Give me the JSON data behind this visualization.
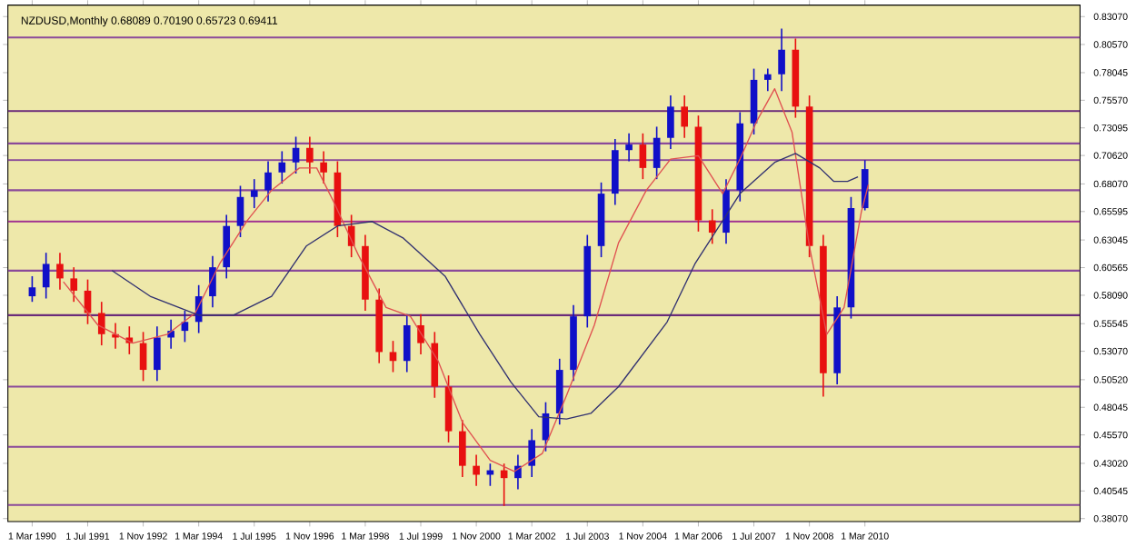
{
  "chart_data": {
    "type": "candlestick",
    "title": "NZDUSD,Monthly  0.68089 0.70190 0.65723 0.69411",
    "xlim": [
      "1989-08",
      "2015-05"
    ],
    "ylim": [
      0.378,
      0.841
    ],
    "xticks": [
      {
        "value": "1990-03-01",
        "label": "1 Mar 1990"
      },
      {
        "value": "1991-07-01",
        "label": "1 Jul 1991"
      },
      {
        "value": "1992-11-01",
        "label": "1 Nov 1992"
      },
      {
        "value": "1994-03-01",
        "label": "1 Mar 1994"
      },
      {
        "value": "1995-07-01",
        "label": "1 Jul 1995"
      },
      {
        "value": "1996-11-01",
        "label": "1 Nov 1996"
      },
      {
        "value": "1998-03-01",
        "label": "1 Mar 1998"
      },
      {
        "value": "1999-07-01",
        "label": "1 Jul 1999"
      },
      {
        "value": "2000-11-01",
        "label": "1 Nov 2000"
      },
      {
        "value": "2002-03-01",
        "label": "1 Mar 2002"
      },
      {
        "value": "2003-07-01",
        "label": "1 Jul 2003"
      },
      {
        "value": "2004-11-01",
        "label": "1 Nov 2004"
      },
      {
        "value": "2006-03-01",
        "label": "1 Mar 2006"
      },
      {
        "value": "2007-07-01",
        "label": "1 Jul 2007"
      },
      {
        "value": "2008-11-01",
        "label": "1 Nov 2008"
      },
      {
        "value": "2010-03-01",
        "label": "1 Mar 2010"
      }
    ],
    "yticks": [
      {
        "value": 0.3807,
        "label": "0.38070"
      },
      {
        "value": 0.40545,
        "label": "0.40545"
      },
      {
        "value": 0.4302,
        "label": "0.43020"
      },
      {
        "value": 0.4557,
        "label": "0.45570"
      },
      {
        "value": 0.48045,
        "label": "0.48045"
      },
      {
        "value": 0.5052,
        "label": "0.50520"
      },
      {
        "value": 0.5307,
        "label": "0.53070"
      },
      {
        "value": 0.55545,
        "label": "0.55545"
      },
      {
        "value": 0.5809,
        "label": "0.58090"
      },
      {
        "value": 0.60565,
        "label": "0.60565"
      },
      {
        "value": 0.63045,
        "label": "0.63045"
      },
      {
        "value": 0.65595,
        "label": "0.65595"
      },
      {
        "value": 0.6807,
        "label": "0.68070"
      },
      {
        "value": 0.7062,
        "label": "0.70620"
      },
      {
        "value": 0.73095,
        "label": "0.73095"
      },
      {
        "value": 0.7557,
        "label": "0.75570"
      },
      {
        "value": 0.78045,
        "label": "0.78045"
      },
      {
        "value": 0.8057,
        "label": "0.80570"
      },
      {
        "value": 0.8307,
        "label": "0.83070"
      }
    ],
    "series": [
      {
        "x": [
          "1990-03",
          "1990-07",
          "1990-11",
          "1991-03",
          "1991-07",
          "1991-11",
          "1992-03",
          "1992-07",
          "1992-11",
          "1993-03",
          "1993-07",
          "1993-11",
          "1994-03",
          "1994-07",
          "1994-11",
          "1995-03",
          "1995-07",
          "1995-11",
          "1996-03",
          "1996-07",
          "1996-11",
          "1997-03",
          "1997-07",
          "1997-11",
          "1998-03",
          "1998-07",
          "1998-11",
          "1999-03",
          "1999-07",
          "1999-11",
          "2000-03",
          "2000-07",
          "2000-11",
          "2001-03",
          "2001-07",
          "2001-11",
          "2002-03",
          "2002-07",
          "2002-11",
          "2003-03",
          "2003-07",
          "2003-11",
          "2004-03",
          "2004-07",
          "2004-11",
          "2005-03",
          "2005-07",
          "2005-11",
          "2006-03",
          "2006-07",
          "2006-11",
          "2007-03",
          "2007-07",
          "2007-11",
          "2008-03",
          "2008-07",
          "2008-11",
          "2009-03",
          "2009-07",
          "2009-11",
          "2010-03"
        ],
        "ohlc": [
          [
            0.58,
            0.598,
            0.575,
            0.588
          ],
          [
            0.588,
            0.619,
            0.578,
            0.609
          ],
          [
            0.609,
            0.619,
            0.586,
            0.596
          ],
          [
            0.596,
            0.606,
            0.575,
            0.585
          ],
          [
            0.585,
            0.595,
            0.555,
            0.565
          ],
          [
            0.565,
            0.575,
            0.536,
            0.546
          ],
          [
            0.546,
            0.556,
            0.533,
            0.543
          ],
          [
            0.543,
            0.553,
            0.528,
            0.538
          ],
          [
            0.538,
            0.548,
            0.504,
            0.514
          ],
          [
            0.514,
            0.553,
            0.504,
            0.543
          ],
          [
            0.543,
            0.559,
            0.533,
            0.549
          ],
          [
            0.549,
            0.567,
            0.539,
            0.557
          ],
          [
            0.557,
            0.59,
            0.547,
            0.58
          ],
          [
            0.58,
            0.616,
            0.57,
            0.606
          ],
          [
            0.606,
            0.653,
            0.596,
            0.643
          ],
          [
            0.643,
            0.679,
            0.633,
            0.669
          ],
          [
            0.669,
            0.685,
            0.659,
            0.675
          ],
          [
            0.675,
            0.701,
            0.665,
            0.691
          ],
          [
            0.691,
            0.71,
            0.681,
            0.7
          ],
          [
            0.7,
            0.723,
            0.69,
            0.713
          ],
          [
            0.713,
            0.723,
            0.69,
            0.7
          ],
          [
            0.7,
            0.71,
            0.681,
            0.691
          ],
          [
            0.691,
            0.701,
            0.633,
            0.643
          ],
          [
            0.643,
            0.653,
            0.615,
            0.625
          ],
          [
            0.625,
            0.635,
            0.567,
            0.577
          ],
          [
            0.577,
            0.587,
            0.52,
            0.53
          ],
          [
            0.53,
            0.54,
            0.512,
            0.522
          ],
          [
            0.522,
            0.564,
            0.512,
            0.554
          ],
          [
            0.554,
            0.564,
            0.528,
            0.538
          ],
          [
            0.538,
            0.548,
            0.489,
            0.499
          ],
          [
            0.499,
            0.509,
            0.449,
            0.459
          ],
          [
            0.459,
            0.469,
            0.418,
            0.428
          ],
          [
            0.428,
            0.438,
            0.41,
            0.42
          ],
          [
            0.42,
            0.43,
            0.41,
            0.424
          ],
          [
            0.424,
            0.43,
            0.392,
            0.417
          ],
          [
            0.417,
            0.438,
            0.407,
            0.428
          ],
          [
            0.428,
            0.461,
            0.418,
            0.451
          ],
          [
            0.451,
            0.485,
            0.441,
            0.475
          ],
          [
            0.475,
            0.524,
            0.465,
            0.514
          ],
          [
            0.514,
            0.572,
            0.504,
            0.562
          ],
          [
            0.562,
            0.635,
            0.552,
            0.625
          ],
          [
            0.625,
            0.682,
            0.615,
            0.672
          ],
          [
            0.672,
            0.721,
            0.662,
            0.711
          ],
          [
            0.711,
            0.726,
            0.701,
            0.716
          ],
          [
            0.716,
            0.726,
            0.685,
            0.695
          ],
          [
            0.695,
            0.732,
            0.685,
            0.722
          ],
          [
            0.722,
            0.76,
            0.712,
            0.75
          ],
          [
            0.75,
            0.76,
            0.722,
            0.732
          ],
          [
            0.732,
            0.742,
            0.638,
            0.648
          ],
          [
            0.648,
            0.658,
            0.627,
            0.637
          ],
          [
            0.637,
            0.685,
            0.627,
            0.675
          ],
          [
            0.675,
            0.745,
            0.665,
            0.735
          ],
          [
            0.735,
            0.784,
            0.725,
            0.774
          ],
          [
            0.774,
            0.784,
            0.764,
            0.779
          ],
          [
            0.779,
            0.82,
            0.764,
            0.801
          ],
          [
            0.801,
            0.811,
            0.74,
            0.75
          ],
          [
            0.75,
            0.76,
            0.615,
            0.625
          ],
          [
            0.625,
            0.635,
            0.49,
            0.511
          ],
          [
            0.511,
            0.58,
            0.501,
            0.57
          ],
          [
            0.57,
            0.669,
            0.56,
            0.659
          ],
          [
            0.659,
            0.702,
            0.657,
            0.694
          ]
        ]
      },
      {
        "type": "line",
        "color": "#e05050",
        "x": [
          "1990-12",
          "1991-10",
          "1992-08",
          "1993-06",
          "1994-02",
          "1994-09",
          "1995-05",
          "1995-12",
          "1996-08",
          "1997-01",
          "1997-06",
          "1998-01",
          "1998-09",
          "1999-04",
          "1999-12",
          "2000-07",
          "2001-03",
          "2001-10",
          "2002-06",
          "2003-01",
          "2003-09",
          "2004-04",
          "2004-12",
          "2005-07",
          "2006-03",
          "2006-10",
          "2007-03",
          "2007-08",
          "2008-01",
          "2008-06",
          "2008-11",
          "2009-04",
          "2009-09",
          "2010-02",
          "2010-04"
        ],
        "values": [
          0.593,
          0.554,
          0.538,
          0.546,
          0.565,
          0.609,
          0.648,
          0.675,
          0.695,
          0.695,
          0.664,
          0.617,
          0.57,
          0.562,
          0.522,
          0.467,
          0.433,
          0.423,
          0.439,
          0.491,
          0.554,
          0.628,
          0.675,
          0.703,
          0.706,
          0.672,
          0.703,
          0.738,
          0.766,
          0.727,
          0.625,
          0.546,
          0.57,
          0.656,
          0.68
        ]
      },
      {
        "type": "line",
        "color": "#303070",
        "x": [
          "1992-02",
          "1993-01",
          "1994-03",
          "1995-01",
          "1995-12",
          "1996-10",
          "1997-07",
          "1998-05",
          "1999-02",
          "2000-02",
          "2000-12",
          "2001-09",
          "2002-05",
          "2003-01",
          "2003-08",
          "2004-04",
          "2005-06",
          "2006-02",
          "2007-03",
          "2008-01",
          "2008-07",
          "2009-02",
          "2009-06",
          "2009-10",
          "2010-01"
        ],
        "values": [
          0.603,
          0.58,
          0.563,
          0.563,
          0.58,
          0.625,
          0.643,
          0.647,
          0.632,
          0.598,
          0.546,
          0.503,
          0.472,
          0.47,
          0.475,
          0.499,
          0.557,
          0.609,
          0.672,
          0.7,
          0.708,
          0.695,
          0.683,
          0.683,
          0.687
        ]
      }
    ],
    "ref_lines": [
      {
        "axis": "y",
        "value": 0.812,
        "color": "#8a4a9a"
      },
      {
        "axis": "y",
        "value": 0.746,
        "color": "#6a2a7a"
      },
      {
        "axis": "y",
        "value": 0.717,
        "color": "#8a4a9a"
      },
      {
        "axis": "y",
        "value": 0.702,
        "color": "#8a4a9a"
      },
      {
        "axis": "y",
        "value": 0.675,
        "color": "#8a4a9a"
      },
      {
        "axis": "y",
        "value": 0.647,
        "color": "#a03090"
      },
      {
        "axis": "y",
        "value": 0.603,
        "color": "#8a4a9a"
      },
      {
        "axis": "y",
        "value": 0.563,
        "color": "#6a2a7a"
      },
      {
        "axis": "y",
        "value": 0.499,
        "color": "#8a4a9a"
      },
      {
        "axis": "y",
        "value": 0.445,
        "color": "#8a4a9a"
      },
      {
        "axis": "y",
        "value": 0.393,
        "color": "#8a4a9a"
      }
    ]
  }
}
